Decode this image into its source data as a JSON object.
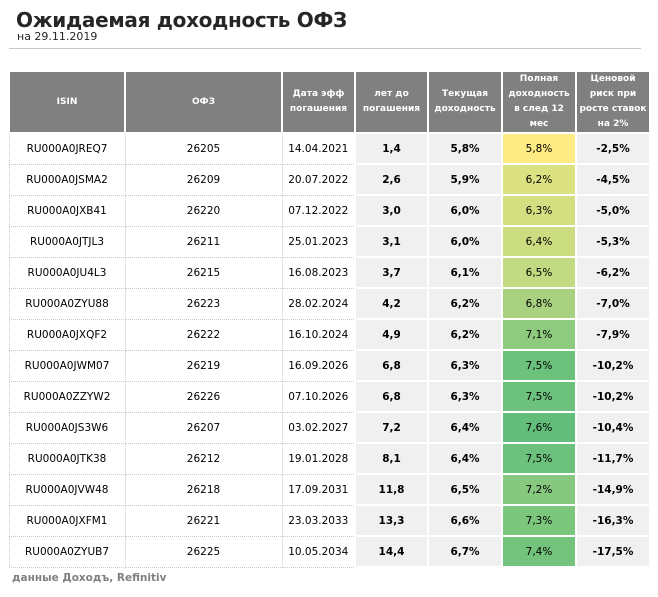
{
  "title": "Ожидаемая доходность ОФЗ",
  "subtitle": "на 29.11.2019",
  "headers": [
    "ISIN",
    "ОФЗ",
    "Дата эфф погашения",
    "лет до погашения",
    "Текущая доходность",
    "Полная доходность в след 12 мес",
    "Ценовой риск при росте ставок на 2%"
  ],
  "rows": [
    [
      "RU000A0JREQ7",
      "26205",
      "14.04.2021",
      "1,4",
      "5,8%",
      "5,8%",
      "-2,5%"
    ],
    [
      "RU000A0JSMA2",
      "26209",
      "20.07.2022",
      "2,6",
      "5,9%",
      "6,2%",
      "-4,5%"
    ],
    [
      "RU000A0JXB41",
      "26220",
      "07.12.2022",
      "3,0",
      "6,0%",
      "6,3%",
      "-5,0%"
    ],
    [
      "RU000A0JTJL3",
      "26211",
      "25.01.2023",
      "3,1",
      "6,0%",
      "6,4%",
      "-5,3%"
    ],
    [
      "RU000A0JU4L3",
      "26215",
      "16.08.2023",
      "3,7",
      "6,1%",
      "6,5%",
      "-6,2%"
    ],
    [
      "RU000A0ZYU88",
      "26223",
      "28.02.2024",
      "4,2",
      "6,2%",
      "6,8%",
      "-7,0%"
    ],
    [
      "RU000A0JXQF2",
      "26222",
      "16.10.2024",
      "4,9",
      "6,2%",
      "7,1%",
      "-7,9%"
    ],
    [
      "RU000A0JWM07",
      "26219",
      "16.09.2026",
      "6,8",
      "6,3%",
      "7,5%",
      "-10,2%"
    ],
    [
      "RU000A0ZZYW2",
      "26226",
      "07.10.2026",
      "6,8",
      "6,3%",
      "7,5%",
      "-10,2%"
    ],
    [
      "RU000A0JS3W6",
      "26207",
      "03.02.2027",
      "7,2",
      "6,4%",
      "7,6%",
      "-10,4%"
    ],
    [
      "RU000A0JTK38",
      "26212",
      "19.01.2028",
      "8,1",
      "6,4%",
      "7,5%",
      "-11,7%"
    ],
    [
      "RU000A0JVW48",
      "26218",
      "17.09.2031",
      "11,8",
      "6,5%",
      "7,2%",
      "-14,9%"
    ],
    [
      "RU000A0JXFM1",
      "26221",
      "23.03.2033",
      "13,3",
      "6,6%",
      "7,3%",
      "-16,3%"
    ],
    [
      "RU000A0ZYUB7",
      "26225",
      "10.05.2034",
      "14,4",
      "6,7%",
      "7,4%",
      "-17,5%"
    ]
  ],
  "heatmap_colors": {
    "min": "#ffeb84",
    "max": "#63be7b"
  },
  "footer": "данные Доходъ, Refinitiv"
}
